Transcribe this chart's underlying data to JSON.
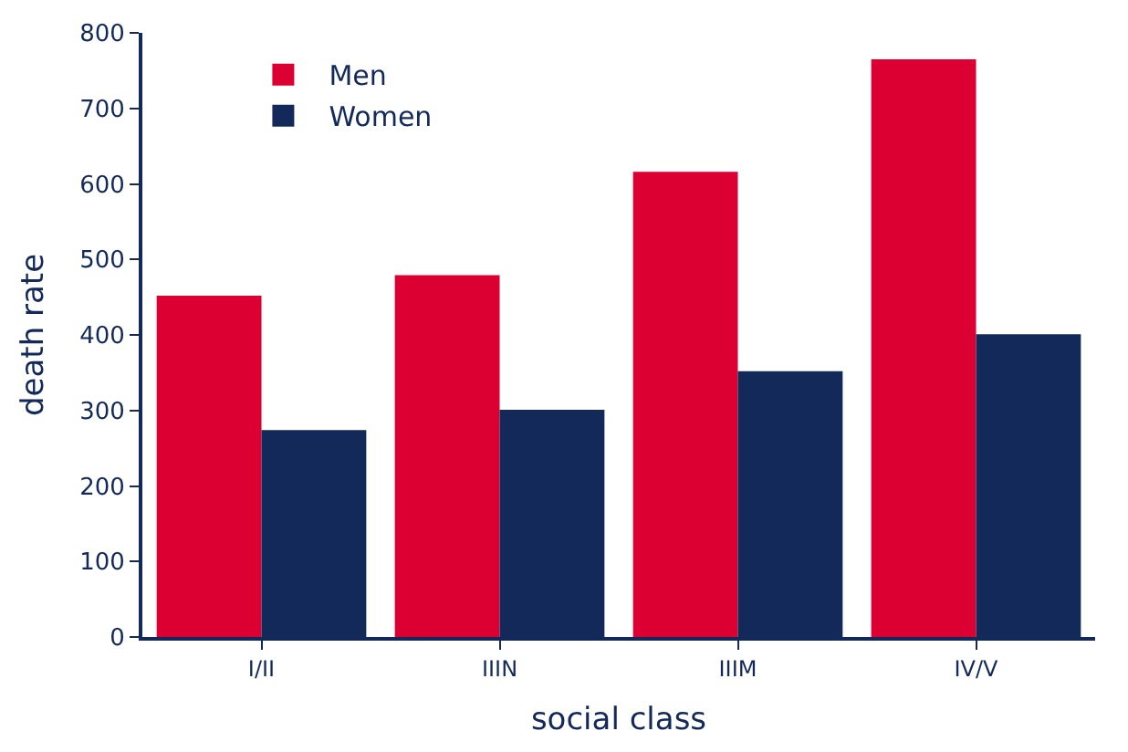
{
  "chart_data": {
    "type": "bar",
    "xlabel": "social class",
    "ylabel": "death rate",
    "categories": [
      "I/II",
      "IIIN",
      "IIIM",
      "IV/V"
    ],
    "series": [
      {
        "name": "Men",
        "color": "#dc0032",
        "values": [
          452,
          479,
          616,
          765
        ]
      },
      {
        "name": "Women",
        "color": "#12295a",
        "values": [
          274,
          301,
          352,
          401
        ]
      }
    ],
    "ylim": [
      0,
      800
    ],
    "yticks": [
      0,
      100,
      200,
      300,
      400,
      500,
      600,
      700,
      800
    ],
    "legend": "top left"
  }
}
